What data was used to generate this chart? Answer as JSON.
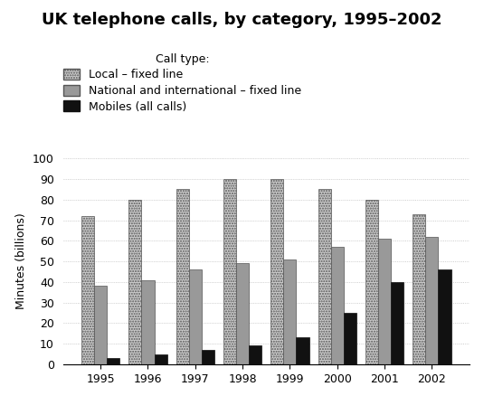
{
  "title": "UK telephone calls, by category, 1995–2002",
  "ylabel": "Minutes (billions)",
  "years": [
    1995,
    1996,
    1997,
    1998,
    1999,
    2000,
    2001,
    2002
  ],
  "local_fixed": [
    72,
    80,
    85,
    90,
    90,
    85,
    80,
    73
  ],
  "national_fixed": [
    38,
    41,
    46,
    49,
    51,
    57,
    61,
    62
  ],
  "mobiles": [
    3,
    5,
    7,
    9,
    13,
    25,
    40,
    46
  ],
  "ylim": [
    0,
    100
  ],
  "yticks": [
    0,
    10,
    20,
    30,
    40,
    50,
    60,
    70,
    80,
    90,
    100
  ],
  "legend_labels": [
    "Local – fixed line",
    "National and international – fixed line",
    "Mobiles (all calls)"
  ],
  "legend_title": "Call type:",
  "bar_width": 0.27,
  "title_fontsize": 13,
  "axis_fontsize": 9,
  "legend_fontsize": 9
}
